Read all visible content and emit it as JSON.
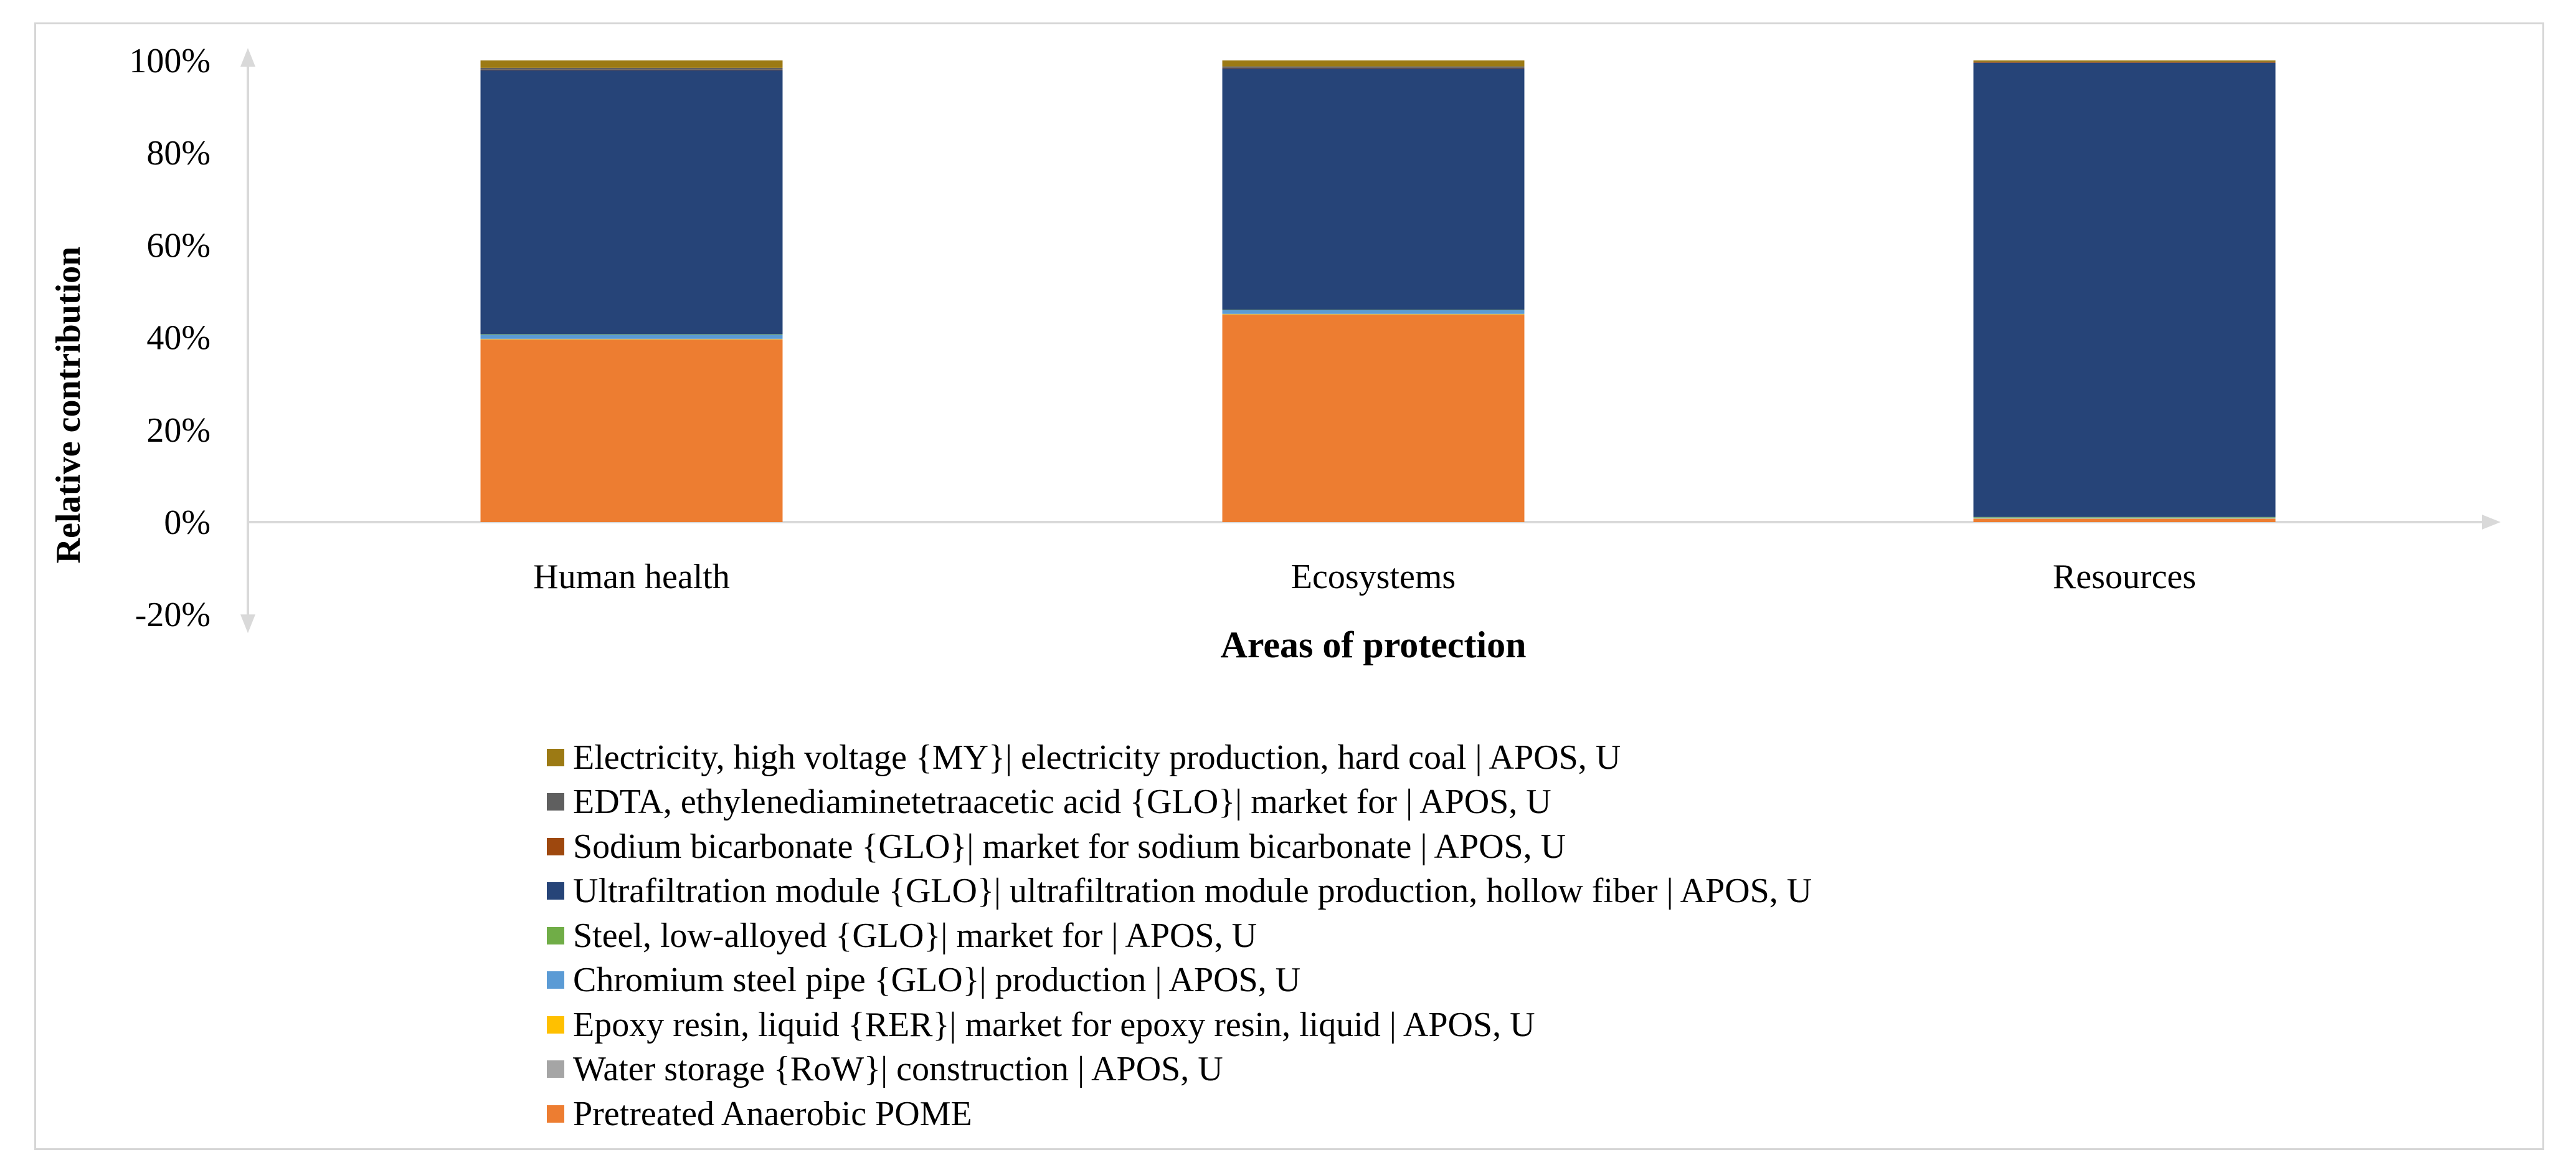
{
  "chart_data": {
    "type": "bar",
    "stacked": true,
    "normalized": true,
    "xlabel": "Areas of protection",
    "ylabel": "Relative contribution",
    "ylim": [
      -20,
      100
    ],
    "yticks": [
      "100%",
      "80%",
      "60%",
      "40%",
      "20%",
      "0%",
      "-20%"
    ],
    "ytick_values": [
      100,
      80,
      60,
      40,
      20,
      0,
      -20
    ],
    "grid": false,
    "legend_position": "bottom",
    "categories": [
      "Human health",
      "Ecosystems",
      "Resources"
    ],
    "series": [
      {
        "name": "Electricity, high voltage {MY}| electricity production, hard coal | APOS, U",
        "color": "#9c7a14",
        "values": [
          1.6,
          1.3,
          0.3
        ]
      },
      {
        "name": "EDTA, ethylenediaminetetraacetic acid {GLO}| market for | APOS, U",
        "color": "#5f5f5f",
        "values": [
          0.4,
          0.3,
          0.1
        ]
      },
      {
        "name": "Sodium bicarbonate {GLO}| market for sodium bicarbonate | APOS, U",
        "color": "#9e480e",
        "values": [
          0.1,
          0.1,
          0.1
        ]
      },
      {
        "name": "Ultrafiltration module {GLO}| ultrafiltration module production, hollow fiber | APOS, U",
        "color": "#264478",
        "values": [
          57.2,
          52.3,
          98.4
        ]
      },
      {
        "name": "Steel, low-alloyed {GLO}| market for | APOS, U",
        "color": "#70ad47",
        "values": [
          0.1,
          0.1,
          0.1
        ]
      },
      {
        "name": "Chromium steel pipe {GLO}| production | APOS, U",
        "color": "#5b9bd5",
        "values": [
          0.9,
          0.8,
          0.1
        ]
      },
      {
        "name": "Epoxy resin, liquid {RER}| market for epoxy resin, liquid | APOS, U",
        "color": "#ffc000",
        "values": [
          0.1,
          0.1,
          0.1
        ]
      },
      {
        "name": "Water storage {RoW}| construction | APOS, U",
        "color": "#a5a5a5",
        "values": [
          0.1,
          0.1,
          0.1
        ]
      },
      {
        "name": "Pretreated Anaerobic POME",
        "color": "#ed7d31",
        "values": [
          39.5,
          44.9,
          0.7
        ]
      }
    ]
  }
}
